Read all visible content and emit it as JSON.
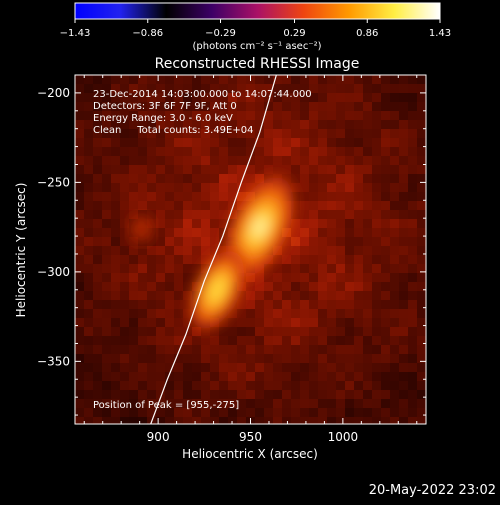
{
  "colorbar": {
    "min": -1.43,
    "max": 1.43,
    "tick_labels": [
      "-1.43",
      "-0.86",
      "-0.29",
      "0.29",
      "0.86",
      "1.43"
    ],
    "unit_label": "(photons cm⁻² s⁻¹ asec⁻²)",
    "colors": [
      "#0000ff",
      "#2222ee",
      "#000000",
      "#3d0066",
      "#aa1166",
      "#ee4411",
      "#ff9900",
      "#ffee44",
      "#ffffff"
    ]
  },
  "chart_data": {
    "type": "heatmap",
    "title": "Reconstructed RHESSI Image",
    "xlabel": "Heliocentric X (arcsec)",
    "ylabel": "Heliocentric Y (arcsec)",
    "xlim": [
      855,
      1045
    ],
    "ylim": [
      -385,
      -190
    ],
    "x_ticks": [
      900,
      950,
      1000
    ],
    "x_tick_labels": [
      "900",
      "950",
      "1000"
    ],
    "y_ticks": [
      -200,
      -250,
      -300,
      -350
    ],
    "y_tick_labels": [
      "−200",
      "−250",
      "−300",
      "−350"
    ],
    "sources": [
      {
        "x": 955,
        "y": -275,
        "relative_peak": 1.0
      },
      {
        "x": 932,
        "y": -310,
        "relative_peak": 0.75
      }
    ],
    "limb_curve": [
      [
        896,
        -385
      ],
      [
        905,
        -360
      ],
      [
        915,
        -335
      ],
      [
        925,
        -305
      ],
      [
        935,
        -280
      ],
      [
        945,
        -250
      ],
      [
        955,
        -222
      ],
      [
        964,
        -190
      ]
    ],
    "annotations": [
      "23-Dec-2014 14:03:00.000 to 14:07:44.000",
      "Detectors: 3F 6F 7F 9F, Att 0",
      "Energy Range: 3.0 - 6.0 keV",
      "Clean     Total counts: 3.49E+04"
    ],
    "peak_label": "Position of Peak = [955,-275]"
  },
  "footer": {
    "timestamp": "20-May-2022 23:02"
  }
}
